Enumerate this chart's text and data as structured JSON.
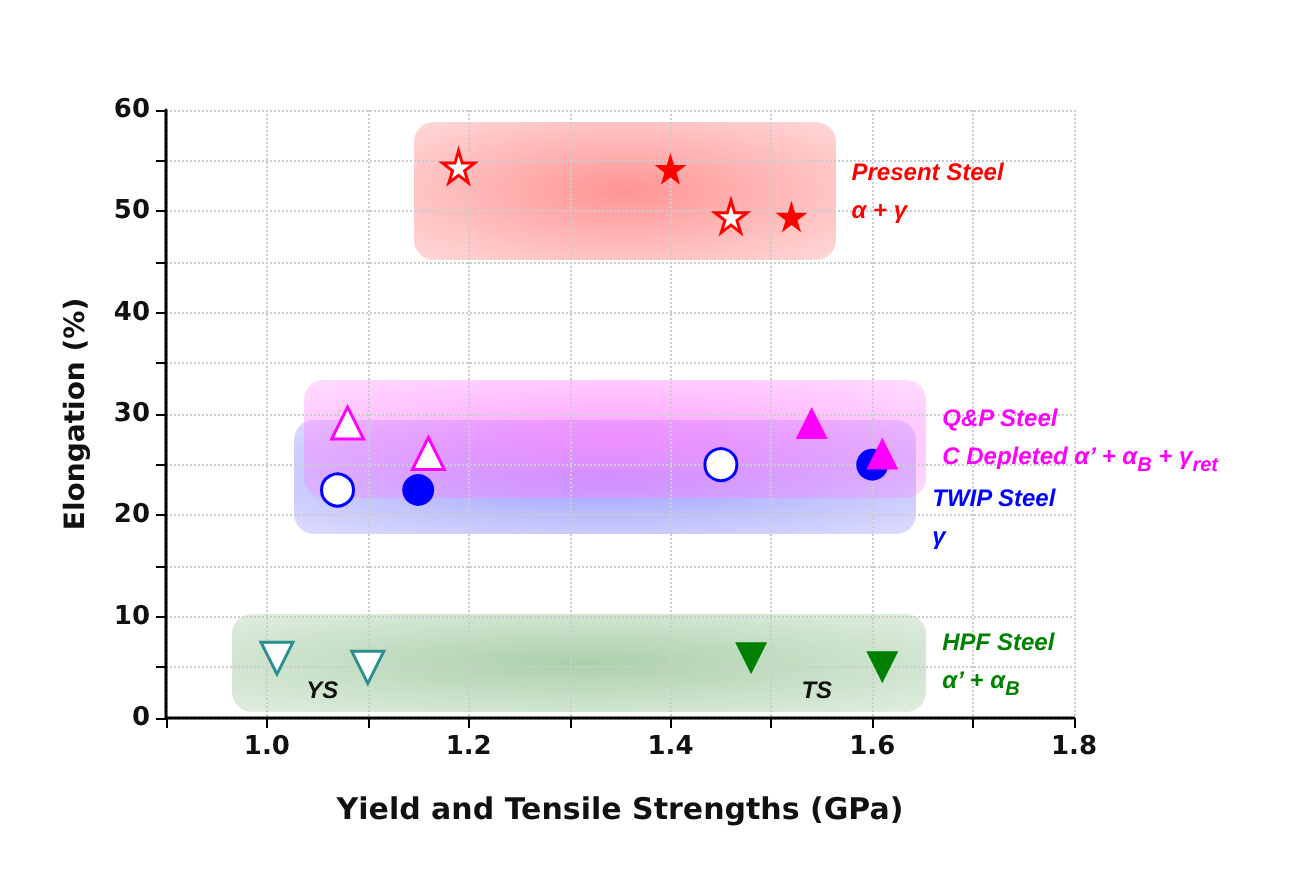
{
  "chart_data": {
    "type": "scatter",
    "xlabel": "Yield and Tensile Strengths (GPa)",
    "ylabel": "Elongation (%)",
    "xlim": [
      0.9,
      1.8
    ],
    "xticks": [
      {
        "value": 0.9,
        "label": null
      },
      {
        "value": 1.0,
        "label": "1.0"
      },
      {
        "value": 1.1,
        "label": null
      },
      1.2,
      {
        "value": 1.3,
        "label": null
      },
      1.4,
      {
        "value": 1.5,
        "label": null
      },
      1.6,
      {
        "value": 1.7,
        "label": null
      },
      1.8
    ],
    "ylim": [
      0,
      60
    ],
    "yticks": [
      0,
      {
        "value": 5,
        "label": null
      },
      10,
      {
        "value": 15,
        "label": null
      },
      20,
      {
        "value": 25,
        "label": null
      },
      30,
      {
        "value": 35,
        "label": null
      },
      40,
      {
        "value": 45,
        "label": null
      },
      50,
      {
        "value": 55,
        "label": null
      },
      60
    ],
    "grid": true,
    "series": [
      {
        "color": "#ff0000",
        "marker": "star-open",
        "x": [
          1.19,
          1.46
        ],
        "values": [
          54.4,
          49.5
        ]
      },
      {
        "color": "#ff0000",
        "marker": "star",
        "x": [
          1.4,
          1.52
        ],
        "values": [
          54.2,
          49.5
        ]
      },
      {
        "color": "#0000ff",
        "marker": "circle-open",
        "x": [
          1.07,
          1.45
        ],
        "values": [
          22.5,
          25.0
        ]
      },
      {
        "color": "#0000ff",
        "marker": "circle",
        "x": [
          1.15,
          1.6
        ],
        "values": [
          22.5,
          25.0
        ]
      },
      {
        "color": "#ff00ff",
        "marker": "triangle-open",
        "x": [
          1.08,
          1.16
        ],
        "values": [
          29.1,
          26.1
        ]
      },
      {
        "color": "#ff00ff",
        "marker": "triangle",
        "x": [
          1.54,
          1.61
        ],
        "values": [
          29.1,
          26.1
        ]
      },
      {
        "color": "#2a8f8f",
        "marker": "triangle-down-open",
        "x": [
          1.01,
          1.1
        ],
        "values": [
          5.9,
          5.0
        ]
      },
      {
        "color": "#008000",
        "marker": "triangle-down",
        "x": [
          1.48,
          1.61
        ],
        "values": [
          5.9,
          5.0
        ]
      }
    ],
    "annotations": [
      "Present Steel\nα + γ",
      "TWIP Steel\nγ",
      "Q&P Steel\nC Depleted α’ + α$_{B}$ + γ$_{ret}$",
      "HPF Steel\nα’ + α$_{B}$",
      "YS",
      "TS"
    ]
  }
}
